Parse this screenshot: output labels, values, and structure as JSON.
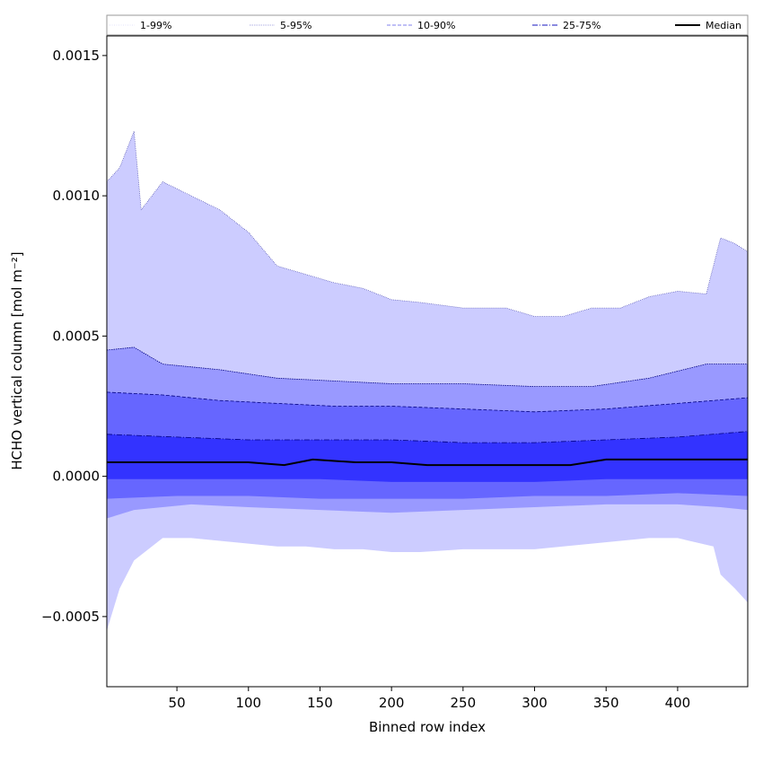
{
  "chart_data": {
    "type": "area",
    "xlabel": "Binned row index",
    "ylabel": "HCHO vertical column [mol m⁻²]",
    "xlim": [
      1,
      449
    ],
    "ylim": [
      -0.00075,
      0.00157
    ],
    "xticks": [
      50,
      100,
      150,
      200,
      250,
      300,
      350,
      400
    ],
    "xtick_labels": [
      "50",
      "100",
      "150",
      "200",
      "250",
      "300",
      "350",
      "400"
    ],
    "yticks": [
      -0.0005,
      0.0,
      0.0005,
      0.001,
      0.0015
    ],
    "ytick_labels": [
      "−0.0005",
      "0.0000",
      "0.0005",
      "0.0010",
      "0.0015"
    ],
    "grid": false,
    "legend_position": "top",
    "legend": [
      {
        "label": "1-99%",
        "style": "dotted-thin",
        "color": "#d8d8f8"
      },
      {
        "label": "5-95%",
        "style": "dotted",
        "color": "#9999dd"
      },
      {
        "label": "10-90%",
        "style": "dashed",
        "color": "#8080ee"
      },
      {
        "label": "25-75%",
        "style": "dashdot",
        "color": "#4444cc"
      },
      {
        "label": "Median",
        "style": "solid",
        "color": "#000000"
      }
    ],
    "bands": [
      {
        "name": "1-99%",
        "color": "#ccccff",
        "upper": [
          [
            1,
            0.00105
          ],
          [
            10,
            0.0011
          ],
          [
            20,
            0.00123
          ],
          [
            25,
            0.00095
          ],
          [
            40,
            0.00105
          ],
          [
            60,
            0.001
          ],
          [
            80,
            0.00095
          ],
          [
            100,
            0.00087
          ],
          [
            120,
            0.00075
          ],
          [
            140,
            0.00072
          ],
          [
            160,
            0.00069
          ],
          [
            180,
            0.00067
          ],
          [
            200,
            0.00063
          ],
          [
            220,
            0.00062
          ],
          [
            250,
            0.0006
          ],
          [
            280,
            0.0006
          ],
          [
            300,
            0.00057
          ],
          [
            320,
            0.00057
          ],
          [
            340,
            0.0006
          ],
          [
            360,
            0.0006
          ],
          [
            380,
            0.00064
          ],
          [
            400,
            0.00066
          ],
          [
            420,
            0.00065
          ],
          [
            430,
            0.00085
          ],
          [
            440,
            0.00083
          ],
          [
            449,
            0.0008
          ]
        ],
        "lower": [
          [
            1,
            -0.00055
          ],
          [
            10,
            -0.0004
          ],
          [
            20,
            -0.0003
          ],
          [
            40,
            -0.00022
          ],
          [
            60,
            -0.00022
          ],
          [
            80,
            -0.00023
          ],
          [
            100,
            -0.00024
          ],
          [
            120,
            -0.00025
          ],
          [
            140,
            -0.00025
          ],
          [
            160,
            -0.00026
          ],
          [
            180,
            -0.00026
          ],
          [
            200,
            -0.00027
          ],
          [
            220,
            -0.00027
          ],
          [
            250,
            -0.00026
          ],
          [
            280,
            -0.00026
          ],
          [
            300,
            -0.00026
          ],
          [
            320,
            -0.00025
          ],
          [
            340,
            -0.00024
          ],
          [
            360,
            -0.00023
          ],
          [
            380,
            -0.00022
          ],
          [
            400,
            -0.00022
          ],
          [
            425,
            -0.00025
          ],
          [
            430,
            -0.00035
          ],
          [
            440,
            -0.0004
          ],
          [
            449,
            -0.00045
          ]
        ]
      },
      {
        "name": "5-95%",
        "color": "#9999ff",
        "upper": [
          [
            1,
            0.00045
          ],
          [
            20,
            0.00046
          ],
          [
            40,
            0.0004
          ],
          [
            80,
            0.00038
          ],
          [
            120,
            0.00035
          ],
          [
            160,
            0.00034
          ],
          [
            200,
            0.00033
          ],
          [
            250,
            0.00033
          ],
          [
            300,
            0.00032
          ],
          [
            340,
            0.00032
          ],
          [
            380,
            0.00035
          ],
          [
            420,
            0.0004
          ],
          [
            449,
            0.0004
          ]
        ],
        "lower": [
          [
            1,
            -0.00015
          ],
          [
            20,
            -0.00012
          ],
          [
            60,
            -0.0001
          ],
          [
            100,
            -0.00011
          ],
          [
            150,
            -0.00012
          ],
          [
            200,
            -0.00013
          ],
          [
            250,
            -0.00012
          ],
          [
            300,
            -0.00011
          ],
          [
            350,
            -0.0001
          ],
          [
            400,
            -0.0001
          ],
          [
            430,
            -0.00011
          ],
          [
            449,
            -0.00012
          ]
        ]
      },
      {
        "name": "10-90%",
        "color": "#6666ff",
        "upper": [
          [
            1,
            0.0003
          ],
          [
            40,
            0.00029
          ],
          [
            80,
            0.00027
          ],
          [
            120,
            0.00026
          ],
          [
            160,
            0.00025
          ],
          [
            200,
            0.00025
          ],
          [
            250,
            0.00024
          ],
          [
            300,
            0.00023
          ],
          [
            350,
            0.00024
          ],
          [
            400,
            0.00026
          ],
          [
            449,
            0.00028
          ]
        ],
        "lower": [
          [
            1,
            -8e-05
          ],
          [
            50,
            -7e-05
          ],
          [
            100,
            -7e-05
          ],
          [
            150,
            -8e-05
          ],
          [
            200,
            -8e-05
          ],
          [
            250,
            -8e-05
          ],
          [
            300,
            -7e-05
          ],
          [
            350,
            -7e-05
          ],
          [
            400,
            -6e-05
          ],
          [
            449,
            -7e-05
          ]
        ]
      },
      {
        "name": "25-75%",
        "color": "#3333ff",
        "upper": [
          [
            1,
            0.00015
          ],
          [
            50,
            0.00014
          ],
          [
            100,
            0.00013
          ],
          [
            150,
            0.00013
          ],
          [
            200,
            0.00013
          ],
          [
            250,
            0.00012
          ],
          [
            300,
            0.00012
          ],
          [
            350,
            0.00013
          ],
          [
            400,
            0.00014
          ],
          [
            449,
            0.00016
          ]
        ],
        "lower": [
          [
            1,
            -1e-05
          ],
          [
            50,
            -1e-05
          ],
          [
            100,
            -1e-05
          ],
          [
            150,
            -1e-05
          ],
          [
            200,
            -2e-05
          ],
          [
            250,
            -2e-05
          ],
          [
            300,
            -2e-05
          ],
          [
            350,
            -1e-05
          ],
          [
            400,
            -1e-05
          ],
          [
            449,
            -1e-05
          ]
        ]
      }
    ],
    "median": [
      [
        1,
        5e-05
      ],
      [
        25,
        5e-05
      ],
      [
        50,
        5e-05
      ],
      [
        75,
        5e-05
      ],
      [
        100,
        5e-05
      ],
      [
        125,
        4e-05
      ],
      [
        145,
        6e-05
      ],
      [
        175,
        5e-05
      ],
      [
        200,
        5e-05
      ],
      [
        225,
        4e-05
      ],
      [
        250,
        4e-05
      ],
      [
        275,
        4e-05
      ],
      [
        300,
        4e-05
      ],
      [
        325,
        4e-05
      ],
      [
        350,
        6e-05
      ],
      [
        375,
        6e-05
      ],
      [
        400,
        6e-05
      ],
      [
        425,
        6e-05
      ],
      [
        449,
        6e-05
      ]
    ]
  }
}
